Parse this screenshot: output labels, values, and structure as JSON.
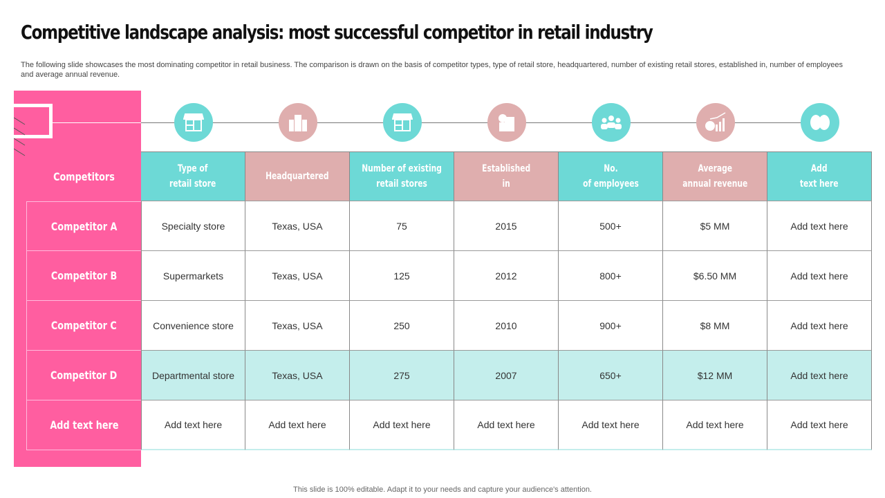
{
  "title": "Competitive landscape analysis: most successful competitor in retail industry",
  "description": "The following slide showcases the most dominating competitor in retail business. The comparison is drawn on the basis of competitor types, type  of retail store, headquartered, number of existing retail stores, established in, number of employees and average annual revenue.",
  "colors": {
    "pink": "#ff5ea0",
    "teal": "#6dd9d6",
    "rose": "#dfaeae",
    "highlight_row": "#c4eeec"
  },
  "table": {
    "corner_label": "Competitors",
    "columns": [
      {
        "label": "Type of\nretail store",
        "icon": "store-icon",
        "color": "teal"
      },
      {
        "label": "Headquartered",
        "icon": "building-icon",
        "color": "rose"
      },
      {
        "label": "Number of existing\nretail stores",
        "icon": "store-icon",
        "color": "teal"
      },
      {
        "label": "Established\nin",
        "icon": "factory-gear-icon",
        "color": "rose"
      },
      {
        "label": "No.\nof employees",
        "icon": "people-icon",
        "color": "teal"
      },
      {
        "label": "Average\nannual revenue",
        "icon": "revenue-chart-icon",
        "color": "rose"
      },
      {
        "label": "Add\ntext here",
        "icon": "brain-icon",
        "color": "teal"
      }
    ],
    "rows": [
      {
        "label": "Competitor A",
        "cells": [
          "Specialty store",
          "Texas, USA",
          "75",
          "2015",
          "500+",
          "$5 MM",
          "Add text here"
        ]
      },
      {
        "label": "Competitor B",
        "cells": [
          "Supermarkets",
          "Texas, USA",
          "125",
          "2012",
          "800+",
          "$6.50 MM",
          "Add text here"
        ]
      },
      {
        "label": "Competitor C",
        "cells": [
          "Convenience store",
          "Texas, USA",
          "250",
          "2010",
          "900+",
          "$8 MM",
          "Add text here"
        ]
      },
      {
        "label": "Competitor D",
        "highlighted": true,
        "cells": [
          "Departmental store",
          "Texas, USA",
          "275",
          "2007",
          "650+",
          "$12 MM",
          "Add text here"
        ]
      },
      {
        "label": "Add text here",
        "cells": [
          "Add text here",
          "Add text here",
          "Add text here",
          "Add text here",
          "Add text here",
          "Add text here",
          "Add text here"
        ]
      }
    ]
  },
  "footer": "This slide is 100% editable. Adapt it to your needs and capture your audience's attention."
}
